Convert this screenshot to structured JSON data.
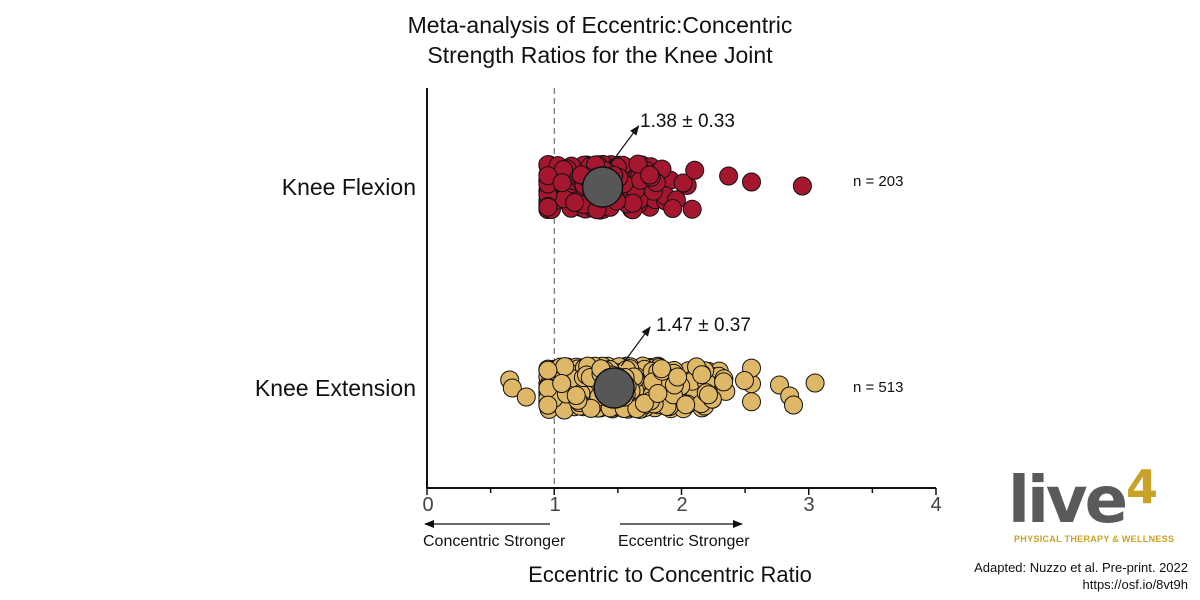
{
  "title": {
    "line1": "Meta-analysis of Eccentric:Concentric",
    "line2": "Strength Ratios for the Knee Joint"
  },
  "direction_labels": {
    "left": "Concentric Stronger",
    "right": "Eccentric Stronger"
  },
  "colors": {
    "flexion": "#a5162f",
    "extension": "#deb767",
    "mean_marker": "#575757",
    "reference_line": "#555555"
  },
  "logo": {
    "word": "live",
    "superscript": "4",
    "tagline": "PHYSICAL THERAPY & WELLNESS"
  },
  "source": {
    "line1": "Adapted: Nuzzo et al. Pre-print. 2022",
    "line2": "https://osf.io/8vt9h"
  },
  "chart_data": {
    "type": "scatter",
    "xlabel": "Eccentric to Concentric Ratio",
    "xlim": [
      0,
      4
    ],
    "x_ticks": [
      0,
      1,
      2,
      3,
      4
    ],
    "x_minor_ticks": [
      0.5,
      1.5,
      2.5,
      3.5
    ],
    "reference_line_x": 1,
    "grid": false,
    "categories": [
      "Knee Flexion",
      "Knee Extension"
    ],
    "series": [
      {
        "category": "Knee Flexion",
        "mean": 1.38,
        "sd": 0.33,
        "stat_label": "1.38 ± 0.33",
        "n_label": "n = 203",
        "outliers_x": [
          2.37,
          2.55,
          2.95
        ],
        "x_range": [
          0.95,
          2.25
        ]
      },
      {
        "category": "Knee Extension",
        "mean": 1.47,
        "sd": 0.37,
        "stat_label": "1.47 ± 0.37",
        "n_label": "n = 513",
        "outliers_x": [
          0.65,
          0.67,
          0.78,
          2.77,
          2.85,
          2.88,
          3.05
        ],
        "x_range": [
          0.95,
          2.55
        ]
      }
    ]
  }
}
